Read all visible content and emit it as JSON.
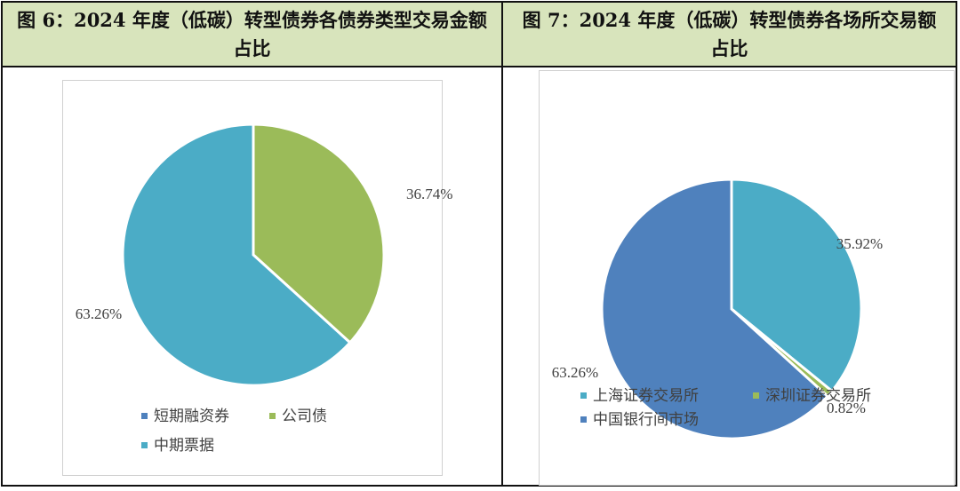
{
  "figure6": {
    "title": "图 6：2024 年度（低碳）转型债券各债券类型交易金额占比"
  },
  "figure7": {
    "title": "图 7：2024 年度（低碳）转型债券各场所交易额占比"
  },
  "chart_data": [
    {
      "type": "pie",
      "categories": [
        "短期融资券",
        "公司债",
        "中期票据"
      ],
      "values": [
        0,
        36.74,
        63.26
      ],
      "value_labels": [
        "",
        "36.74%",
        "63.26%"
      ],
      "colors": [
        "#4f81bd",
        "#9bbb59",
        "#4bacc6"
      ],
      "legend": "bottom"
    },
    {
      "type": "pie",
      "categories": [
        "上海证券交易所",
        "深圳证券交易所",
        "中国银行间市场"
      ],
      "values": [
        35.92,
        0.82,
        63.26
      ],
      "value_labels": [
        "35.92%",
        "0.82%",
        "63.26%"
      ],
      "colors": [
        "#4bacc6",
        "#9bbb59",
        "#4f81bd"
      ],
      "legend": "bottom"
    }
  ]
}
